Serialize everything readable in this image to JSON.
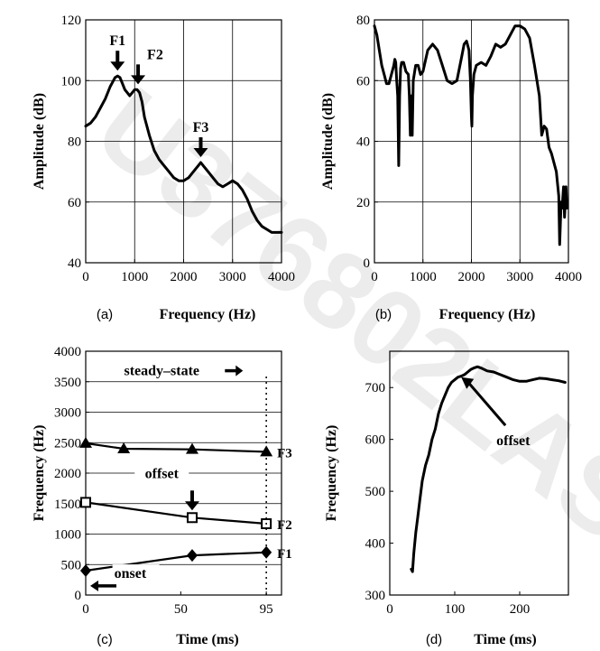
{
  "colors": {
    "ink": "#000000",
    "background": "#ffffff",
    "watermark": "#ececec"
  },
  "watermark_text": "U376802LAS",
  "chart_data": [
    {
      "id": "a",
      "type": "line",
      "caption": "(a)",
      "xlabel": "Frequency (Hz)",
      "ylabel": "Amplitude (dB)",
      "xlim": [
        0,
        4000
      ],
      "ylim": [
        40,
        120
      ],
      "xticks": [
        0,
        1000,
        2000,
        3000,
        4000
      ],
      "yticks": [
        40,
        60,
        80,
        100,
        120
      ],
      "grid": true,
      "series": [
        {
          "x": [
            0,
            100,
            200,
            300,
            400,
            500,
            600,
            650,
            700,
            750,
            800,
            900,
            950,
            1000,
            1050,
            1100,
            1150,
            1200,
            1300,
            1400,
            1500,
            1600,
            1700,
            1800,
            1900,
            2000,
            2100,
            2200,
            2300,
            2350,
            2400,
            2500,
            2600,
            2700,
            2800,
            2900,
            3000,
            3100,
            3200,
            3300,
            3400,
            3500,
            3600,
            3700,
            3800,
            3900,
            4000
          ],
          "y": [
            85,
            86,
            88,
            91,
            94,
            98,
            101,
            101.5,
            101,
            99,
            97,
            95,
            96,
            97,
            97,
            96,
            93,
            88,
            82,
            77,
            74,
            72,
            70,
            68,
            67,
            67,
            68,
            70,
            72,
            73,
            72,
            70,
            68,
            66,
            65,
            66,
            67,
            66,
            64,
            61,
            57,
            54,
            52,
            51,
            50,
            50,
            50
          ]
        }
      ],
      "annotations": [
        {
          "text": "F1",
          "x": 650,
          "y": 101.5
        },
        {
          "text": "F2",
          "x": 1070,
          "y": 97
        },
        {
          "text": "F3",
          "x": 2350,
          "y": 73
        }
      ]
    },
    {
      "id": "b",
      "type": "line",
      "caption": "(b)",
      "xlabel": "Frequency (Hz)",
      "ylabel": "Amplitude (dB)",
      "xlim": [
        0,
        4000
      ],
      "ylim": [
        0,
        80
      ],
      "xticks": [
        0,
        1000,
        2000,
        3000,
        4000
      ],
      "yticks": [
        0,
        20,
        40,
        60,
        80
      ],
      "grid": true,
      "series": [
        {
          "x": [
            0,
            50,
            100,
            150,
            200,
            250,
            300,
            350,
            400,
            420,
            440,
            460,
            480,
            500,
            520,
            540,
            560,
            600,
            650,
            700,
            720,
            740,
            760,
            780,
            800,
            850,
            900,
            950,
            1000,
            1100,
            1200,
            1300,
            1400,
            1500,
            1600,
            1700,
            1800,
            1850,
            1900,
            1950,
            1980,
            2000,
            2010,
            2020,
            2050,
            2100,
            2200,
            2300,
            2400,
            2500,
            2600,
            2700,
            2800,
            2900,
            3000,
            3100,
            3200,
            3300,
            3400,
            3450,
            3500,
            3550,
            3600,
            3650,
            3700,
            3750,
            3800,
            3820,
            3850,
            3870,
            3900,
            3920,
            3950,
            3970
          ],
          "y": [
            78,
            75,
            70,
            65,
            62,
            59,
            59,
            62,
            65,
            67,
            66,
            60,
            55,
            32,
            55,
            64,
            66,
            66,
            63,
            62,
            55,
            42,
            55,
            42,
            60,
            65,
            65,
            62,
            63,
            70,
            72,
            70,
            65,
            60,
            59,
            60,
            68,
            72,
            73,
            70,
            60,
            48,
            45,
            55,
            62,
            65,
            66,
            65,
            68,
            72,
            71,
            72,
            75,
            78,
            78,
            77,
            74,
            65,
            55,
            42,
            45,
            44,
            38,
            36,
            33,
            30,
            22,
            6,
            20,
            18,
            25,
            15,
            25,
            18
          ]
        }
      ]
    },
    {
      "id": "c",
      "type": "line",
      "caption": "(c)",
      "xlabel": "Time (ms)",
      "ylabel": "Frequency (Hz)",
      "xlim": [
        0,
        103
      ],
      "ylim": [
        0,
        4000
      ],
      "xticks": [
        0,
        50,
        95
      ],
      "yticks": [
        0,
        500,
        1000,
        1500,
        2000,
        2500,
        3000,
        3500,
        4000
      ],
      "grid": "horizontal",
      "series": [
        {
          "name": "F3",
          "marker": "triangle",
          "x": [
            0,
            20,
            56,
            95
          ],
          "y": [
            2490,
            2400,
            2390,
            2350
          ]
        },
        {
          "name": "F2",
          "marker": "square",
          "x": [
            0,
            56,
            95
          ],
          "y": [
            1520,
            1270,
            1170
          ]
        },
        {
          "name": "F1",
          "marker": "diamond",
          "x": [
            0,
            56,
            95
          ],
          "y": [
            400,
            650,
            700
          ]
        }
      ],
      "annotations": [
        {
          "text": "steady–state",
          "x": 40,
          "y": 3680
        },
        {
          "text": "offset",
          "x": 40,
          "y": 1930
        },
        {
          "text": "onset",
          "x": 15,
          "y": 310
        }
      ]
    },
    {
      "id": "d",
      "type": "line",
      "caption": "(d)",
      "xlabel": "Time (ms)",
      "ylabel": "Frequency (Hz)",
      "xlim": [
        0,
        275
      ],
      "ylim": [
        300,
        770
      ],
      "xticks": [
        0,
        100,
        200
      ],
      "yticks": [
        300,
        400,
        500,
        600,
        700
      ],
      "grid": false,
      "series": [
        {
          "x": [
            33,
            35,
            37,
            40,
            43,
            46,
            50,
            55,
            60,
            65,
            70,
            75,
            80,
            85,
            90,
            95,
            100,
            105,
            110,
            115,
            120,
            125,
            130,
            135,
            140,
            150,
            160,
            170,
            180,
            190,
            200,
            210,
            220,
            230,
            240,
            250,
            260,
            270
          ],
          "y": [
            350,
            345,
            380,
            420,
            450,
            480,
            520,
            550,
            570,
            600,
            620,
            650,
            670,
            685,
            700,
            710,
            715,
            720,
            722,
            725,
            730,
            735,
            738,
            740,
            738,
            732,
            730,
            725,
            720,
            715,
            712,
            712,
            715,
            718,
            717,
            715,
            713,
            710
          ]
        }
      ],
      "annotations": [
        {
          "text": "offset",
          "x": 190,
          "y": 620
        }
      ]
    }
  ]
}
